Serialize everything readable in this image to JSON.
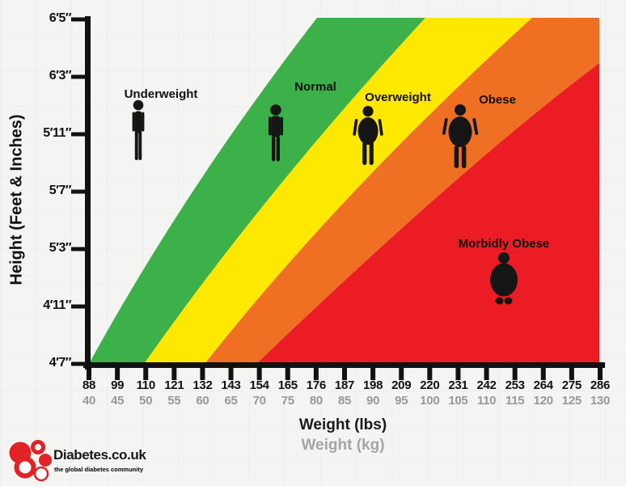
{
  "page": {
    "background": "#f4f4f2"
  },
  "chart_data": {
    "type": "area",
    "title": "",
    "xlabel": "Weight (lbs)",
    "ylabel": "Height (Feet & Inches)",
    "grid": false,
    "legend_position": "labels inside plot",
    "zones": [
      {
        "label": "Underweight",
        "color": "#F4F4F2"
      },
      {
        "label": "Normal",
        "color": "#3CB14A"
      },
      {
        "label": "Overweight",
        "color": "#FFE800"
      },
      {
        "label": "Obese",
        "color": "#EF7023"
      },
      {
        "label": "Morbidly Obese",
        "color": "#EC1C24"
      }
    ],
    "x_axis": {
      "label_primary": "Weight (lbs)",
      "label_secondary": "Weight (kg)",
      "ticks_lbs": [
        88,
        99,
        110,
        121,
        132,
        143,
        154,
        165,
        176,
        187,
        198,
        209,
        220,
        231,
        242,
        253,
        264,
        275,
        286
      ],
      "ticks_kg": [
        40,
        45,
        50,
        55,
        60,
        65,
        70,
        75,
        80,
        85,
        90,
        95,
        100,
        105,
        110,
        115,
        120,
        125,
        130
      ],
      "range_lbs": [
        88,
        286
      ],
      "range_kg": [
        40,
        130
      ]
    },
    "y_axis": {
      "label": "Height (Feet & Inches)",
      "ticks": [
        "4′7″",
        "4′11″",
        "5′3″",
        "5′7″",
        "5′11″",
        "6′3″",
        "6′5″"
      ],
      "range": [
        "4′7″",
        "6′5″"
      ]
    },
    "axis_color": "#111111"
  },
  "logo": {
    "title": "Diabetes.co.uk",
    "tagline": "the global diabetes community",
    "brand_red": "#E32226",
    "title_color": "#181818"
  }
}
